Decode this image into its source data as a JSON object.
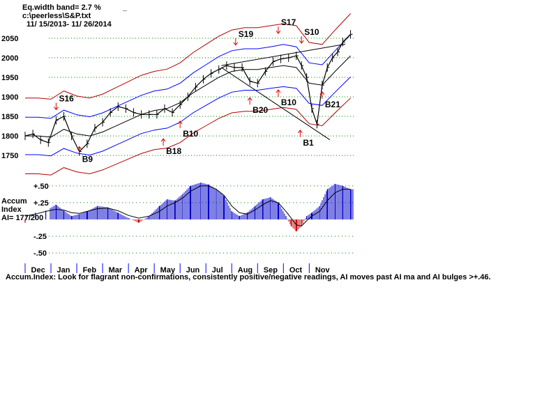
{
  "header": {
    "line1": "Eq.width band= 2.7 %",
    "line1_mark": "_",
    "line2": "c:\\peerless\\S&P.txt",
    "line3": "11/ 15/2013- 11/ 26/2014"
  },
  "accum": {
    "label1": "Accum",
    "label2": "Index",
    "label3": "AI= 177/200",
    "yticks": [
      "+.50",
      "+.25",
      "-.25",
      "-.50"
    ]
  },
  "footer": {
    "text": "Accum.Index: Look for flagrant non-confirmations, consistently positive/negative readings, AI moves past AI ma and AI bulges >+.46."
  },
  "colors": {
    "price": "#000000",
    "band_inner": "#0000ff",
    "band_outer": "#b40000",
    "grid": "#008000",
    "ai_pos": "#0000c8",
    "ai_neg": "#c80000",
    "arrow": "#dd0000"
  },
  "chart_data": [
    {
      "type": "line",
      "title": "",
      "xlabel": "",
      "ylabel": "",
      "yticks": [
        1750,
        1800,
        1850,
        1900,
        1950,
        2000,
        2050
      ],
      "ylim": [
        1720,
        2080
      ],
      "xlim": [
        0,
        12.8
      ],
      "grid": "horizontal dotted",
      "x_month_labels": [
        "Dec",
        "Jan",
        "Feb",
        "Mar",
        "Apr",
        "May",
        "Jun",
        "Jul",
        "Aug",
        "Sep",
        "Oct",
        "Nov"
      ],
      "x_month_positions": [
        0.5,
        1.5,
        2.5,
        3.5,
        4.5,
        5.5,
        6.5,
        7.5,
        8.5,
        9.5,
        10.5,
        11.5
      ],
      "series": [
        {
          "x": [
            0,
            0.3,
            0.6,
            0.9,
            1.2,
            1.5,
            1.8,
            2.1,
            2.4,
            2.7,
            3.0,
            3.3,
            3.6,
            3.9,
            4.2,
            4.5,
            4.8,
            5.1,
            5.4,
            5.7,
            6.0,
            6.3,
            6.6,
            6.9,
            7.2,
            7.5,
            7.8,
            8.1,
            8.4,
            8.7,
            9.0,
            9.3,
            9.6,
            9.9,
            10.2,
            10.5,
            10.7,
            10.9,
            11.1,
            11.3,
            11.5,
            11.7,
            11.9,
            12.1,
            12.3,
            12.6
          ],
          "y": [
            1800,
            1805,
            1790,
            1783,
            1840,
            1850,
            1800,
            1760,
            1780,
            1820,
            1835,
            1860,
            1875,
            1870,
            1860,
            1855,
            1855,
            1855,
            1870,
            1860,
            1880,
            1900,
            1925,
            1945,
            1960,
            1970,
            1980,
            1975,
            1975,
            1940,
            1935,
            1965,
            1990,
            1997,
            2000,
            2005,
            1980,
            1950,
            1870,
            1830,
            1930,
            1975,
            2000,
            2015,
            2040,
            2060
          ]
        },
        {
          "x": [
            0.0,
            0.5,
            1.0,
            1.5,
            2.0,
            2.5,
            3.0,
            3.5,
            4.0,
            4.5,
            5.0,
            5.5,
            6.0,
            6.5,
            7.0,
            7.5,
            8.0,
            8.5,
            9.0,
            9.5,
            10.0,
            10.5,
            11.0,
            11.5,
            12.0,
            12.6
          ],
          "y": [
            1800,
            1800,
            1797,
            1817,
            1805,
            1800,
            1810,
            1825,
            1840,
            1855,
            1865,
            1870,
            1885,
            1910,
            1930,
            1950,
            1965,
            1970,
            1970,
            1975,
            1980,
            1975,
            1935,
            1930,
            1965,
            2005
          ]
        },
        {
          "x": [
            0.0,
            0.5,
            1.0,
            1.5,
            2.0,
            2.5,
            3.0,
            3.5,
            4.0,
            4.5,
            5.0,
            5.5,
            6.0,
            6.5,
            7.0,
            7.5,
            8.0,
            8.5,
            9.0,
            9.5,
            10.0,
            10.5,
            11.0,
            11.5,
            12.0,
            12.6
          ],
          "y": [
            1848,
            1848,
            1845,
            1866,
            1854,
            1849,
            1859,
            1874,
            1889,
            1904,
            1915,
            1920,
            1935,
            1961,
            1982,
            2003,
            2018,
            2023,
            2023,
            2028,
            2034,
            2028,
            1987,
            1982,
            2018,
            2059
          ]
        },
        {
          "x": [
            0.0,
            0.5,
            1.0,
            1.5,
            2.0,
            2.5,
            3.0,
            3.5,
            4.0,
            4.5,
            5.0,
            5.5,
            6.0,
            6.5,
            7.0,
            7.5,
            8.0,
            8.5,
            9.0,
            9.5,
            10.0,
            10.5,
            11.0,
            11.5,
            12.0,
            12.6
          ],
          "y": [
            1752,
            1752,
            1749,
            1768,
            1756,
            1751,
            1761,
            1776,
            1791,
            1806,
            1815,
            1820,
            1835,
            1859,
            1878,
            1897,
            1912,
            1917,
            1917,
            1922,
            1926,
            1922,
            1883,
            1878,
            1912,
            1951
          ]
        },
        {
          "x": [
            0.0,
            0.5,
            1.0,
            1.5,
            2.0,
            2.5,
            3.0,
            3.5,
            4.0,
            4.5,
            5.0,
            5.5,
            6.0,
            6.5,
            7.0,
            7.5,
            8.0,
            8.5,
            9.0,
            9.5,
            10.0,
            10.5,
            11.0,
            11.5,
            12.0,
            12.6
          ],
          "y": [
            1897,
            1897,
            1894,
            1915,
            1902,
            1897,
            1907,
            1923,
            1939,
            1955,
            1965,
            1971,
            1987,
            2013,
            2034,
            2055,
            2071,
            2077,
            2077,
            2082,
            2087,
            2082,
            2039,
            2034,
            2071,
            2113
          ]
        },
        {
          "x": [
            0.0,
            0.5,
            1.0,
            1.5,
            2.0,
            2.5,
            3.0,
            3.5,
            4.0,
            4.5,
            5.0,
            5.5,
            6.0,
            6.5,
            7.0,
            7.5,
            8.0,
            8.5,
            9.0,
            9.5,
            10.0,
            10.5,
            11.0,
            11.5,
            12.0,
            12.6
          ],
          "y": [
            1703,
            1703,
            1700,
            1719,
            1708,
            1703,
            1713,
            1727,
            1741,
            1755,
            1765,
            1769,
            1783,
            1807,
            1826,
            1845,
            1859,
            1863,
            1863,
            1868,
            1873,
            1868,
            1831,
            1826,
            1859,
            1897
          ]
        }
      ],
      "trendlines": [
        {
          "x": [
            7.6,
            11.8
          ],
          "y": [
            1975,
            1790
          ]
        },
        {
          "x": [
            7.6,
            12.4
          ],
          "y": [
            1980,
            2035
          ]
        }
      ],
      "signals": [
        {
          "label": "S16",
          "x": 1.2,
          "y": 1885,
          "direction": "down"
        },
        {
          "label": "B9",
          "x": 2.1,
          "y": 1755,
          "direction": "up"
        },
        {
          "label": "B18",
          "x": 5.35,
          "y": 1775,
          "direction": "up"
        },
        {
          "label": "B10",
          "x": 6.0,
          "y": 1820,
          "direction": "up"
        },
        {
          "label": "S19",
          "x": 8.15,
          "y": 2050,
          "direction": "down"
        },
        {
          "label": "B20",
          "x": 8.7,
          "y": 1880,
          "direction": "up"
        },
        {
          "label": "B10",
          "x": 9.8,
          "y": 1900,
          "direction": "up"
        },
        {
          "label": "S17",
          "x": 9.8,
          "y": 2080,
          "direction": "down"
        },
        {
          "label": "S10",
          "x": 10.7,
          "y": 2055,
          "direction": "down"
        },
        {
          "label": "B1",
          "x": 10.65,
          "y": 1797,
          "direction": "up"
        },
        {
          "label": "B21",
          "x": 11.5,
          "y": 1895,
          "direction": "up"
        }
      ]
    },
    {
      "type": "bar",
      "title": "",
      "ylabel": "Accum Index",
      "yticks": [
        0.5,
        0.25,
        -0.25,
        -0.5
      ],
      "ylim": [
        -0.55,
        0.55
      ],
      "x": [
        0,
        0.4,
        0.8,
        1.2,
        1.5,
        1.8,
        2.1,
        2.4,
        2.8,
        3.2,
        3.6,
        4.0,
        4.4,
        4.8,
        5.2,
        5.5,
        5.8,
        6.1,
        6.4,
        6.8,
        7.1,
        7.4,
        7.7,
        8.0,
        8.3,
        8.6,
        8.9,
        9.2,
        9.5,
        9.8,
        10.1,
        10.3,
        10.5,
        10.7,
        10.9,
        11.1,
        11.4,
        11.7,
        12.0,
        12.3,
        12.6
      ],
      "values": [
        -0.05,
        0.1,
        0.13,
        0.22,
        0.13,
        0.05,
        0.08,
        0.12,
        0.2,
        0.18,
        0.1,
        0.02,
        -0.05,
        0.05,
        0.2,
        0.3,
        0.28,
        0.38,
        0.5,
        0.55,
        0.52,
        0.45,
        0.35,
        0.12,
        0.05,
        0.1,
        0.2,
        0.3,
        0.33,
        0.25,
        0.05,
        -0.1,
        -0.18,
        -0.1,
        0.05,
        0.1,
        0.2,
        0.45,
        0.53,
        0.5,
        0.45
      ],
      "ma": [
        0.05,
        0.08,
        0.12,
        0.15,
        0.14,
        0.1,
        0.09,
        0.12,
        0.16,
        0.17,
        0.13,
        0.06,
        0.02,
        0.05,
        0.12,
        0.2,
        0.25,
        0.32,
        0.42,
        0.5,
        0.5,
        0.45,
        0.36,
        0.2,
        0.1,
        0.08,
        0.14,
        0.22,
        0.28,
        0.25,
        0.12,
        0.02,
        -0.08,
        -0.1,
        -0.02,
        0.05,
        0.12,
        0.28,
        0.4,
        0.45,
        0.45
      ]
    }
  ]
}
